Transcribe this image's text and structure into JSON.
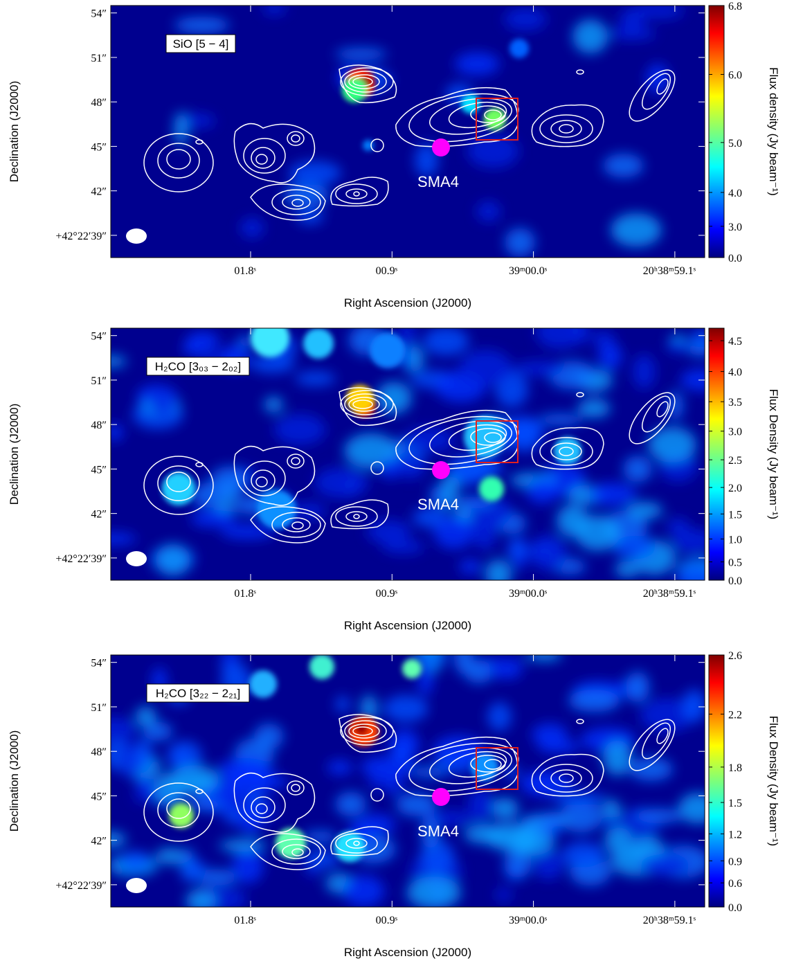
{
  "chart_data": [
    {
      "type": "image",
      "title": "SiO [5 − 4]",
      "annotations": [
        "SMA4"
      ],
      "xlabel": "Right Ascension (J2000)",
      "ylabel": "Declination (J2000)",
      "clabel": "Flux density (Jy beam⁻¹)",
      "xlim": [
        2.69,
        -1.09
      ],
      "xticks": [
        {
          "value": 1.8,
          "label": "01.8ˢ"
        },
        {
          "value": 0.9,
          "label": "00.9ˢ"
        },
        {
          "value": 0,
          "label": "39ᵐ00.0ˢ"
        },
        {
          "value": -0.9,
          "label": "20ʰ38ᵐ59.1ˢ"
        }
      ],
      "ylim": [
        37.5,
        54.5
      ],
      "yticks": [
        {
          "value": 54,
          "label": "54″"
        },
        {
          "value": 51,
          "label": "51″"
        },
        {
          "value": 48,
          "label": "48″"
        },
        {
          "value": 45,
          "label": "45″"
        },
        {
          "value": 42,
          "label": "42″"
        },
        {
          "value": 39,
          "label": "+42°22′39″"
        }
      ],
      "clim": [
        0,
        6.8
      ],
      "cticks": [
        {
          "value": 0,
          "label": "0.0"
        },
        {
          "value": 3,
          "label": "3.0"
        },
        {
          "value": 4,
          "label": "4.0"
        },
        {
          "value": 5,
          "label": "5.0"
        },
        {
          "value": 6,
          "label": "6.0"
        },
        6.8
      ]
    },
    {
      "type": "image",
      "title": "H₂CO [3₀₃ − 2₀₂]",
      "annotations": [
        "SMA4"
      ],
      "xlabel": "Right Ascension (J2000)",
      "ylabel": "Declination (J2000)",
      "clabel": "Flux Density (Jy beam⁻¹)",
      "xlim": [
        2.69,
        -1.09
      ],
      "xticks": [
        {
          "value": 1.8,
          "label": "01.8ˢ"
        },
        {
          "value": 0.9,
          "label": "00.9ˢ"
        },
        {
          "value": 0,
          "label": "39ᵐ00.0ˢ"
        },
        {
          "value": -0.9,
          "label": "20ʰ38ᵐ59.1ˢ"
        }
      ],
      "ylim": [
        37.5,
        54.5
      ],
      "yticks": [
        {
          "value": 54,
          "label": "54″"
        },
        {
          "value": 51,
          "label": "51″"
        },
        {
          "value": 48,
          "label": "48″"
        },
        {
          "value": 45,
          "label": "45″"
        },
        {
          "value": 42,
          "label": "42″"
        },
        {
          "value": 39,
          "label": "+42°22′39″"
        }
      ],
      "clim": [
        0,
        4.7
      ],
      "cticks": [
        {
          "value": 0,
          "label": "0.0"
        },
        0.5,
        {
          "value": 1,
          "label": "1.0"
        },
        1.5,
        {
          "value": 2,
          "label": "2.0"
        },
        2.5,
        {
          "value": 3,
          "label": "3.0"
        },
        3.5,
        {
          "value": 4,
          "label": "4.0"
        },
        4.5
      ]
    },
    {
      "type": "image",
      "title": "H₂CO [3₂₂ − 2₂₁]",
      "annotations": [
        "SMA4"
      ],
      "xlabel": "Right Ascension (J2000)",
      "ylabel": "Declination (J2000)",
      "clabel": "Flux Density (Jy beam⁻¹)",
      "xlim": [
        2.69,
        -1.09
      ],
      "xticks": [
        {
          "value": 1.8,
          "label": "01.8ˢ"
        },
        {
          "value": 0.9,
          "label": "00.9ˢ"
        },
        {
          "value": 0,
          "label": "39ᵐ00.0ˢ"
        },
        {
          "value": -0.9,
          "label": "20ʰ38ᵐ59.1ˢ"
        }
      ],
      "ylim": [
        37.5,
        54.5
      ],
      "yticks": [
        {
          "value": 54,
          "label": "54″"
        },
        {
          "value": 51,
          "label": "51″"
        },
        {
          "value": 48,
          "label": "48″"
        },
        {
          "value": 45,
          "label": "45″"
        },
        {
          "value": 42,
          "label": "42″"
        },
        {
          "value": 39,
          "label": "+42°22′39″"
        }
      ],
      "clim": [
        0,
        2.6
      ],
      "cticks": [
        {
          "value": 0,
          "label": "0.0"
        },
        0.6,
        0.9,
        1.2,
        1.5,
        1.8,
        2.2,
        2.6
      ]
    }
  ]
}
